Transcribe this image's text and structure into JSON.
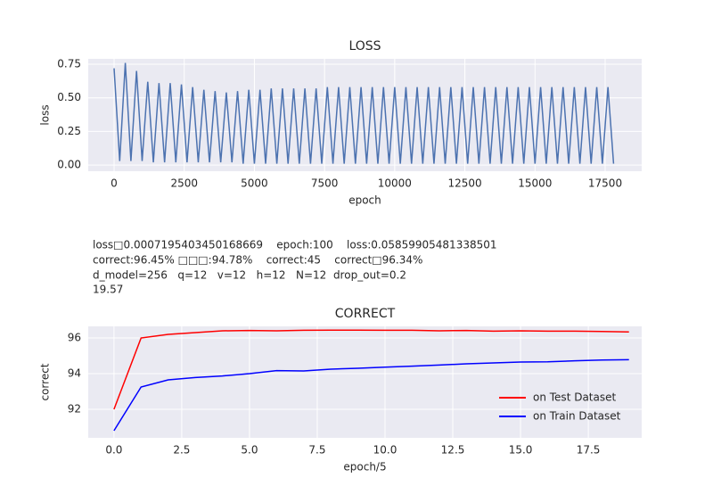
{
  "chart_data": [
    {
      "type": "line",
      "title": "LOSS",
      "x_label": "epoch",
      "y_label": "loss",
      "grid": true,
      "x": [
        0,
        200,
        400,
        600,
        800,
        1000,
        1200,
        1400,
        1600,
        1800,
        2000,
        2200,
        2400,
        2600,
        2800,
        3000,
        3200,
        3400,
        3600,
        3800,
        4000,
        4200,
        4400,
        4600,
        4800,
        5000,
        5200,
        5400,
        5600,
        5800,
        6000,
        6200,
        6400,
        6600,
        6800,
        7000,
        7200,
        7400,
        7600,
        7800,
        8000,
        8200,
        8400,
        8600,
        8800,
        9000,
        9200,
        9400,
        9600,
        9800,
        10000,
        10200,
        10400,
        10600,
        10800,
        11000,
        11200,
        11400,
        11600,
        11800,
        12000,
        12200,
        12400,
        12600,
        12800,
        13000,
        13200,
        13400,
        13600,
        13800,
        14000,
        14200,
        14400,
        14600,
        14800,
        15000,
        15200,
        15400,
        15600,
        15800,
        16000,
        16200,
        16400,
        16600,
        16800,
        17000,
        17200,
        17400,
        17600,
        17800
      ],
      "series": [
        {
          "color": "#4c72b0",
          "values": [
            0.72,
            0.03,
            0.76,
            0.03,
            0.7,
            0.03,
            0.62,
            0.02,
            0.61,
            0.02,
            0.61,
            0.02,
            0.6,
            0.02,
            0.58,
            0.02,
            0.56,
            0.02,
            0.55,
            0.02,
            0.54,
            0.02,
            0.55,
            0.01,
            0.56,
            0.01,
            0.56,
            0.01,
            0.57,
            0.01,
            0.57,
            0.01,
            0.57,
            0.01,
            0.57,
            0.01,
            0.57,
            0.01,
            0.58,
            0.01,
            0.58,
            0.01,
            0.58,
            0.01,
            0.58,
            0.01,
            0.58,
            0.01,
            0.58,
            0.01,
            0.58,
            0.01,
            0.58,
            0.01,
            0.58,
            0.01,
            0.58,
            0.01,
            0.58,
            0.01,
            0.58,
            0.01,
            0.58,
            0.01,
            0.58,
            0.01,
            0.58,
            0.01,
            0.58,
            0.01,
            0.58,
            0.01,
            0.58,
            0.01,
            0.58,
            0.01,
            0.58,
            0.01,
            0.58,
            0.01,
            0.58,
            0.01,
            0.58,
            0.01,
            0.58,
            0.01,
            0.58,
            0.01,
            0.58,
            0.01
          ]
        }
      ],
      "xlim": [
        -921,
        18802
      ],
      "xticks": [
        0,
        2500,
        5000,
        7500,
        10000,
        12500,
        15000,
        17500
      ],
      "ylim": [
        -0.046,
        0.79
      ],
      "yticks": [
        {
          "value": 0,
          "label": "0.00"
        },
        0.25,
        {
          "value": 0.5,
          "label": "0.50"
        },
        0.75
      ]
    },
    {
      "type": "line",
      "title": "CORRECT",
      "x_label": "epoch/5",
      "y_label": "correct",
      "grid": true,
      "legend": "lower right",
      "x": [
        0,
        1,
        2,
        3,
        4,
        5,
        6,
        7,
        8,
        9,
        10,
        11,
        12,
        13,
        14,
        15,
        16,
        17,
        18,
        19
      ],
      "series": [
        {
          "name": "on Test Dataset",
          "color": "#ff0000",
          "values": [
            92.0,
            96.0,
            96.2,
            96.3,
            96.4,
            96.42,
            96.4,
            96.43,
            96.44,
            96.44,
            96.43,
            96.43,
            96.4,
            96.42,
            96.38,
            96.4,
            96.38,
            96.38,
            96.36,
            96.34
          ]
        },
        {
          "name": "on Train Dataset",
          "color": "#0000ff",
          "values": [
            90.8,
            93.25,
            93.65,
            93.78,
            93.87,
            94.0,
            94.17,
            94.15,
            94.25,
            94.3,
            94.36,
            94.42,
            94.48,
            94.55,
            94.6,
            94.65,
            94.66,
            94.72,
            94.76,
            94.78
          ]
        }
      ],
      "xlim": [
        -0.95,
        19.47
      ],
      "xticks": [
        {
          "value": 0,
          "label": "0.0"
        },
        2.5,
        {
          "value": 5,
          "label": "5.0"
        },
        7.5,
        {
          "value": 10,
          "label": "10.0"
        },
        12.5,
        {
          "value": 15,
          "label": "15.0"
        },
        17.5
      ],
      "ylim": [
        90.4,
        96.65
      ],
      "yticks": [
        92,
        94,
        96
      ]
    }
  ],
  "text_block": {
    "lines": [
      "loss□0.0007195403450168669    epoch:100    loss:0.05859905481338501",
      "correct:96.45% □□□:94.78%    correct:45    correct□96.34%",
      "d_model=256   q=12   v=12   h=12   N=12  drop_out=0.2",
      "19.57"
    ]
  }
}
